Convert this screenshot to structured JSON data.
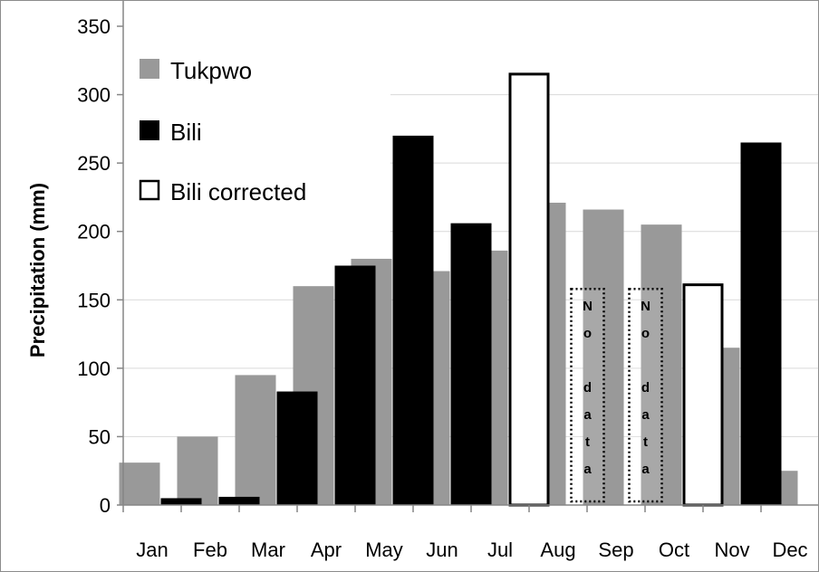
{
  "chart_data": {
    "type": "bar",
    "title": "",
    "xlabel": "",
    "ylabel": "Precipitation (mm)",
    "ylim": [
      0,
      350
    ],
    "yticks": [
      0,
      50,
      100,
      150,
      200,
      250,
      300,
      350
    ],
    "categories": [
      "Jan",
      "Feb",
      "Mar",
      "Apr",
      "May",
      "Jun",
      "Jul",
      "Aug",
      "Sep",
      "Oct",
      "Nov",
      "Dec"
    ],
    "grid": "horizontal, partial",
    "legend_position": "top-left",
    "series": [
      {
        "name": "Tukpwo",
        "color": "#999999",
        "values": [
          31,
          50,
          95,
          160,
          180,
          171,
          186,
          221,
          216,
          205,
          115,
          25
        ]
      },
      {
        "name": "Bili",
        "color": "#000000",
        "values": [
          5,
          6,
          83,
          175,
          270,
          206,
          null,
          null,
          null,
          null,
          265,
          null
        ]
      },
      {
        "name": "Bili corrected",
        "color": "#ffffff",
        "stroke": "#000000",
        "values": [
          null,
          null,
          null,
          null,
          null,
          null,
          316,
          null,
          null,
          162,
          null,
          null
        ]
      }
    ],
    "annotations": [
      {
        "category": "Aug",
        "text": "No data",
        "lines": [
          "N",
          "o",
          "",
          "d",
          "a",
          "t",
          "a"
        ],
        "box_top_value": 158
      },
      {
        "category": "Sep",
        "text": "No data",
        "lines": [
          "N",
          "o",
          "",
          "d",
          "a",
          "t",
          "a"
        ],
        "box_top_value": 158
      }
    ]
  }
}
